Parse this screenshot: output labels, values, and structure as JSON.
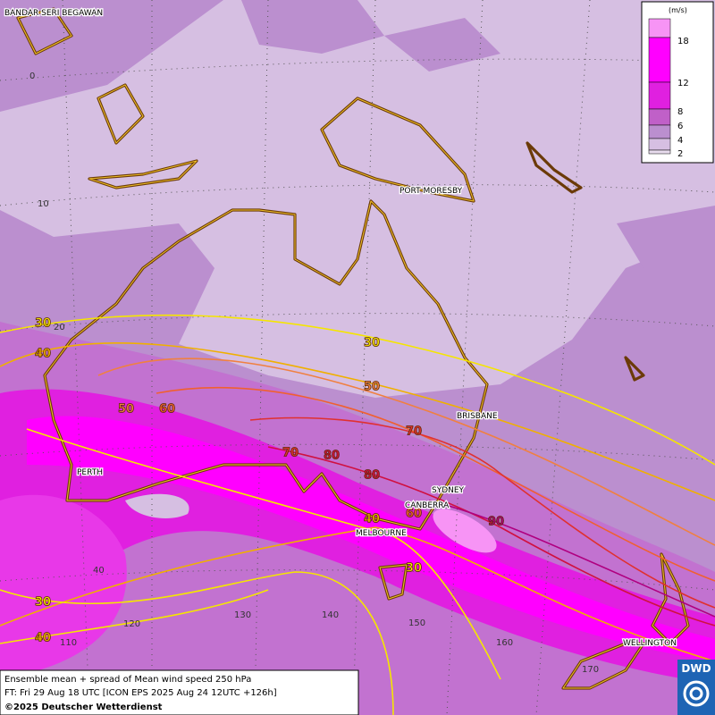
{
  "map": {
    "cities": [
      "BANDAR SERI BEGAWAN",
      "PORT MORESBY",
      "BRISBANE",
      "PERTH",
      "SYDNEY",
      "CANBERRA",
      "MELBOURNE",
      "WELLINGTON"
    ],
    "grid_labels": [
      "0",
      "10",
      "20",
      "40",
      "110",
      "120",
      "130",
      "140",
      "150",
      "160",
      "170"
    ],
    "contour_labels": [
      30,
      40,
      50,
      60,
      30,
      50,
      70,
      70,
      80,
      80,
      90,
      60,
      40,
      30,
      30,
      40
    ]
  },
  "legend": {
    "unit": "(m/s)",
    "levels": [
      18,
      12,
      8,
      6,
      4,
      2
    ]
  },
  "footer": {
    "lines": [
      "Ensemble mean + spread of Mean wind speed 250 hPa",
      "FT: Fri 29 Aug 18 UTC [ICON EPS 2025 Aug 24 12UTC +126h]",
      "©2025 Deutscher Wetterdienst"
    ]
  },
  "logo": "DWD"
}
